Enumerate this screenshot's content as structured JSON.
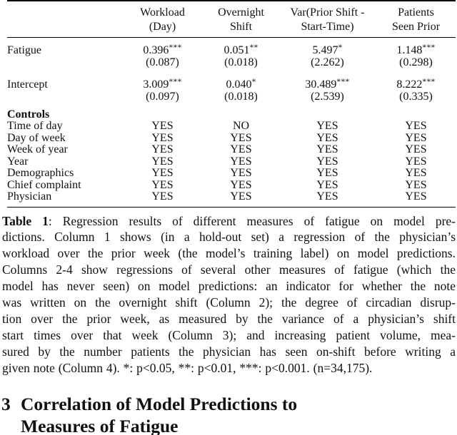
{
  "table": {
    "header": [
      {
        "line1": "Workload",
        "line2": "(Day)"
      },
      {
        "line1": "Overnight",
        "line2": "Shift"
      },
      {
        "line1": "Var(Prior Shift -",
        "line2": "Start-Time)"
      },
      {
        "line1": "Patients",
        "line2": "Seen Prior"
      }
    ],
    "coef_rows": [
      {
        "label": "Fatigue",
        "cells": [
          {
            "est": "0.396",
            "stars": "***",
            "se": "(0.087)"
          },
          {
            "est": "0.051",
            "stars": "**",
            "se": "(0.018)"
          },
          {
            "est": "5.497",
            "stars": "*",
            "se": "(2.262)"
          },
          {
            "est": "1.148",
            "stars": "***",
            "se": "(0.298)"
          }
        ]
      },
      {
        "label": "Intercept",
        "cells": [
          {
            "est": "3.009",
            "stars": "***",
            "se": "(0.097)"
          },
          {
            "est": "0.040",
            "stars": "*",
            "se": "(0.018)"
          },
          {
            "est": "30.489",
            "stars": "***",
            "se": "(2.539)"
          },
          {
            "est": "8.222",
            "stars": "***",
            "se": "(0.335)"
          }
        ]
      }
    ],
    "controls_label": "Controls",
    "control_rows": [
      {
        "label": "Time of day",
        "values": [
          "YES",
          "NO",
          "YES",
          "YES"
        ]
      },
      {
        "label": "Day of week",
        "values": [
          "YES",
          "YES",
          "YES",
          "YES"
        ]
      },
      {
        "label": "Week of year",
        "values": [
          "YES",
          "YES",
          "YES",
          "YES"
        ]
      },
      {
        "label": "Year",
        "values": [
          "YES",
          "YES",
          "YES",
          "YES"
        ]
      },
      {
        "label": "Demographics",
        "values": [
          "YES",
          "YES",
          "YES",
          "YES"
        ]
      },
      {
        "label": "Chief complaint",
        "values": [
          "YES",
          "YES",
          "YES",
          "YES"
        ]
      },
      {
        "label": "Physician",
        "values": [
          "YES",
          "YES",
          "YES",
          "YES"
        ]
      }
    ]
  },
  "caption": {
    "label": "Table 1",
    "lines": [
      ": Regression results of different measures of fatigue on model pre-",
      "dictions. Column 1 shows (in a hold-out set) a regression of the physician’s",
      "workload over the prior week (the model’s training label) on model predictions.",
      "Columns 2-4 show regressions of several other measures of fatigue (which the",
      "model has never seen) on model predictions: an indicator for whether the note",
      "was written on the overnight shift (Column 2); the degree of circadian disrup-",
      "tion over the prior week, as measured by the variance of a physician’s shift",
      "start times over that week (Column 3); and increasing patient volume, mea-",
      "sured by the number patients the physician has seen on-shift before writing a",
      "given note (Column 4). *: p<0.05, **: p<0.01, ***: p<0.001. (n=34,175)."
    ]
  },
  "section": {
    "number": "3",
    "title_line1": "Correlation of Model Predictions to",
    "title_line2": "Measures of Fatigue"
  }
}
